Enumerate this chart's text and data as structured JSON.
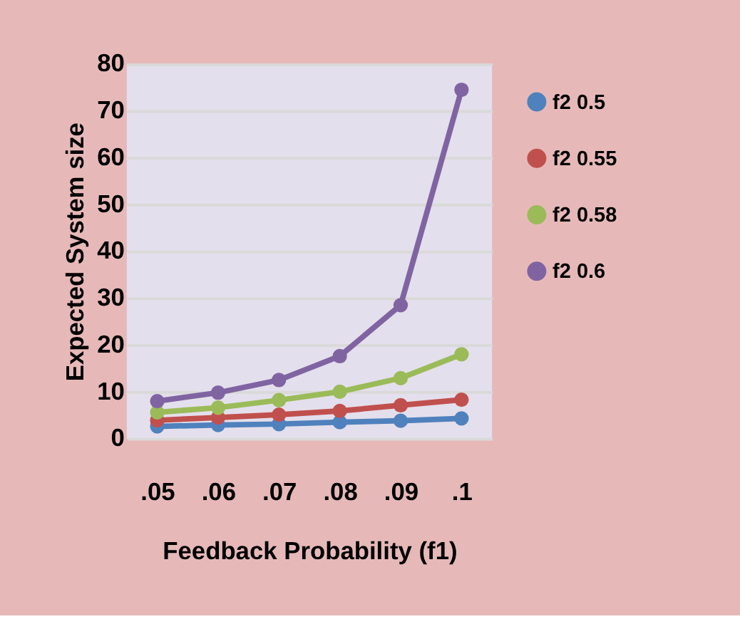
{
  "chart_data": {
    "type": "line",
    "xlabel": "Feedback Probability (f1)",
    "ylabel": "Expected System size",
    "categories": [
      ".05",
      ".06",
      ".07",
      ".08",
      ".09",
      ".1"
    ],
    "series": [
      {
        "name": "f2   0.5",
        "color": "#4f81bd",
        "values": [
          2.6,
          2.9,
          3.1,
          3.5,
          3.8,
          4.3
        ]
      },
      {
        "name": "f2   0.55",
        "color": "#c0504d",
        "values": [
          3.9,
          4.5,
          5.1,
          5.9,
          7.1,
          8.3
        ]
      },
      {
        "name": "f2   0.58",
        "color": "#9bbb59",
        "values": [
          5.6,
          6.6,
          8.2,
          10.0,
          12.9,
          18.0
        ]
      },
      {
        "name": "f2   0.6",
        "color": "#8064a2",
        "values": [
          8.0,
          9.8,
          12.5,
          17.6,
          28.5,
          74.5
        ]
      }
    ],
    "ylim": [
      0,
      80
    ],
    "yticks": [
      0,
      10,
      20,
      30,
      40,
      50,
      60,
      70,
      80
    ],
    "grid": "y",
    "legend": "right",
    "marker": "circle",
    "line_style": "solid"
  }
}
